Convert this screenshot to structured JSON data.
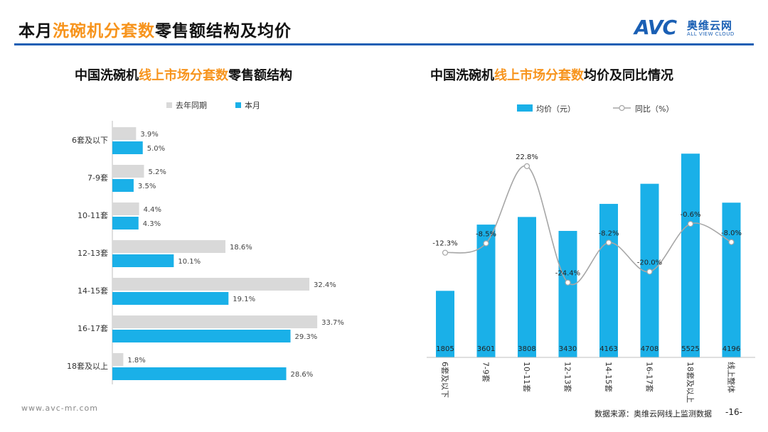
{
  "header": {
    "title_pre": "本月",
    "title_hl": "洗碗机分套数",
    "title_post": "零售额结构及均价"
  },
  "logo": {
    "mark": "AVC",
    "cn": "奥维云网",
    "en": "ALL VIEW CLOUD"
  },
  "left_chart": {
    "title_pre": "中国洗碗机",
    "title_hl": "线上市场分套数",
    "title_post": "零售额结构"
  },
  "right_chart": {
    "title_pre": "中国洗碗机",
    "title_hl": "线上市场分套数",
    "title_post": "均价及同比情况"
  },
  "footer": {
    "url": "www.avc-mr.com",
    "source": "数据来源：奥维云网线上监测数据",
    "page": "-16-"
  },
  "colors": {
    "accent": "#F7941D",
    "blue": "#1ab0e8",
    "gray": "#d9d9d9",
    "brand": "#1a5fb4"
  },
  "chart_data": [
    {
      "type": "bar",
      "orientation": "horizontal",
      "categories": [
        "6套及以下",
        "7-9套",
        "10-11套",
        "12-13套",
        "14-15套",
        "16-17套",
        "18套及以上"
      ],
      "series": [
        {
          "name": "去年同期",
          "values": [
            3.9,
            5.2,
            4.4,
            18.6,
            32.4,
            33.7,
            1.8
          ],
          "labels": [
            "3.9%",
            "5.2%",
            "4.4%",
            "18.6%",
            "32.4%",
            "33.7%",
            "1.8%"
          ],
          "color": "#d9d9d9"
        },
        {
          "name": "本月",
          "values": [
            5.0,
            3.5,
            4.3,
            10.1,
            19.1,
            29.3,
            28.6
          ],
          "labels": [
            "5.0%",
            "3.5%",
            "4.3%",
            "10.1%",
            "19.1%",
            "29.3%",
            "28.6%"
          ],
          "color": "#1ab0e8"
        }
      ],
      "legend": "top"
    },
    {
      "type": "bar",
      "categories": [
        "6套及以下",
        "7-9套",
        "10-11套",
        "12-13套",
        "14-15套",
        "16-17套",
        "18套及以上",
        "线上整体"
      ],
      "series": [
        {
          "name": "均价（元）",
          "type": "bar",
          "values": [
            1805,
            3601,
            3808,
            3430,
            4163,
            4708,
            5525,
            4196
          ],
          "labels": [
            "1805",
            "3601",
            "3808",
            "3430",
            "4163",
            "4708",
            "5525",
            "4196"
          ],
          "color": "#1ab0e8"
        },
        {
          "name": "同比（%）",
          "type": "line",
          "values": [
            -12.3,
            -8.5,
            22.8,
            -24.4,
            -8.2,
            -20.0,
            -0.6,
            -8.0
          ],
          "labels": [
            "-12.3%",
            "-8.5%",
            "22.8%",
            "-24.4%",
            "-8.2%",
            "-20.0%",
            "-0.6%",
            "-8.0%"
          ],
          "color": "#a6a6a6"
        }
      ],
      "legend": "top"
    }
  ]
}
